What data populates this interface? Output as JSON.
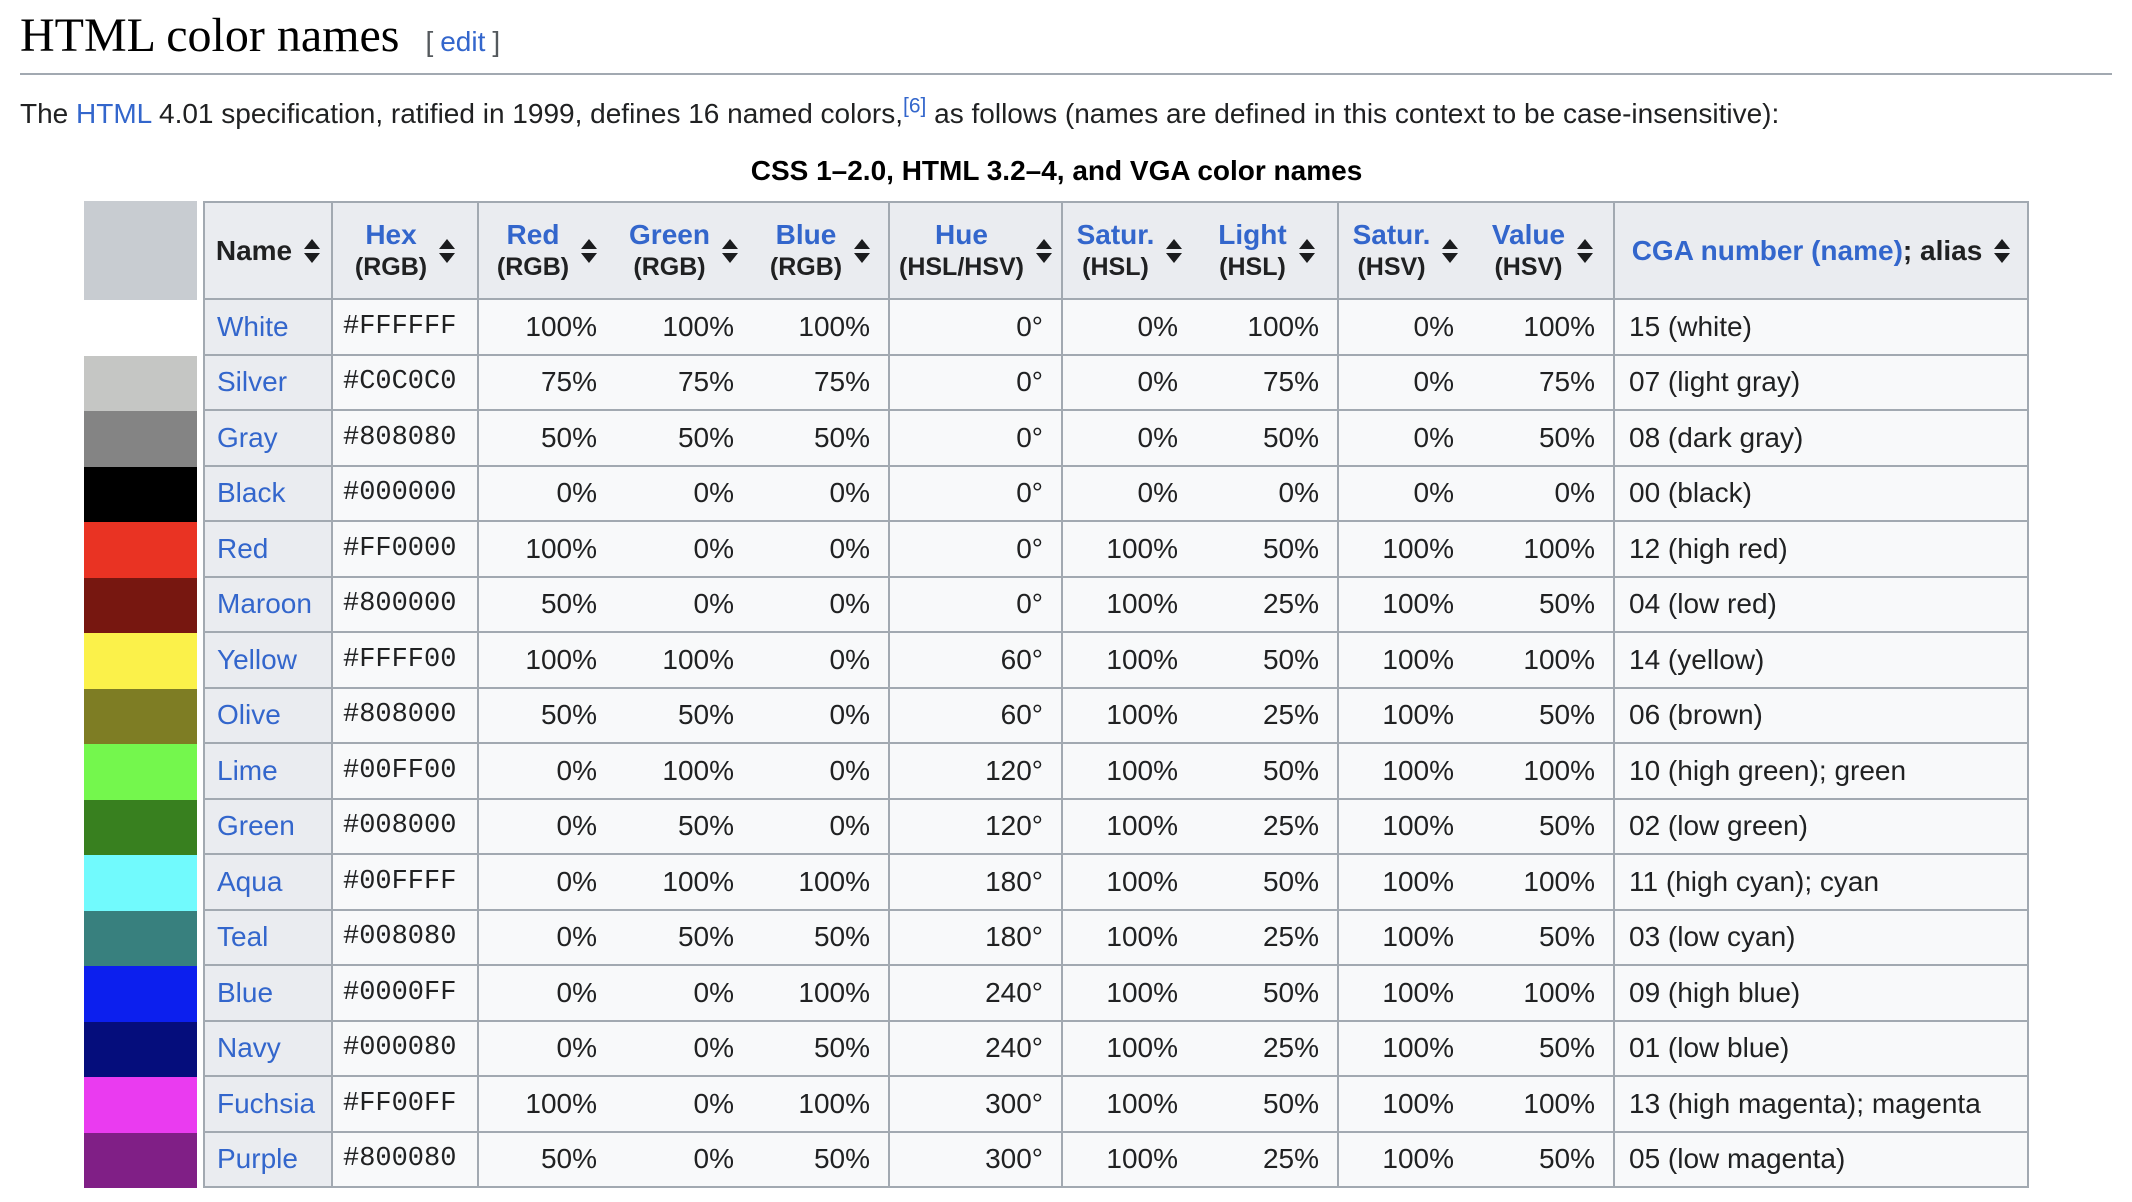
{
  "colors": {
    "link": "#3366CC",
    "text": "#202122",
    "border": "#A2A9B1",
    "header_bg": "#EAECF0",
    "corner_bg": "#C8CCD1",
    "cell_bg": "#F8F9FA",
    "bracket": "#54595D"
  },
  "page": {
    "title": "HTML color names",
    "edit": {
      "open": "[",
      "label": "edit",
      "close": "]"
    },
    "intro": {
      "before": "The ",
      "link": "HTML",
      "middle": " 4.01 specification, ratified in 1999, defines 16 named colors,",
      "ref": "[6]",
      "tail": " as follows (names are defined in this context to be case-insensitive):"
    }
  },
  "table": {
    "caption": "CSS 1–2.0, HTML 3.2–4, and VGA color names",
    "columns": [
      {
        "id": "name",
        "label": "Name",
        "sub": "",
        "link": false,
        "suffix": ""
      },
      {
        "id": "hex",
        "label": "Hex",
        "sub": "(RGB)",
        "link": true,
        "suffix": ""
      },
      {
        "id": "red",
        "label": "Red",
        "sub": "(RGB)",
        "link": true,
        "suffix": ""
      },
      {
        "id": "green",
        "label": "Green",
        "sub": "(RGB)",
        "link": true,
        "suffix": ""
      },
      {
        "id": "blue",
        "label": "Blue",
        "sub": "(RGB)",
        "link": true,
        "suffix": ""
      },
      {
        "id": "hue",
        "label": "Hue",
        "sub": "(HSL/HSV)",
        "link": true,
        "suffix": ""
      },
      {
        "id": "sat_hsl",
        "label": "Satur.",
        "sub": "(HSL)",
        "link": true,
        "suffix": ""
      },
      {
        "id": "light",
        "label": "Light",
        "sub": "(HSL)",
        "link": true,
        "suffix": ""
      },
      {
        "id": "sat_hsv",
        "label": "Satur.",
        "sub": "(HSV)",
        "link": true,
        "suffix": ""
      },
      {
        "id": "value",
        "label": "Value",
        "sub": "(HSV)",
        "link": true,
        "suffix": ""
      },
      {
        "id": "cga",
        "label": "CGA number (name)",
        "sub": "",
        "link": true,
        "suffix": "; alias"
      }
    ],
    "rows": [
      {
        "name": "White",
        "swatch": "#FFFFFF",
        "hex": "#FFFFFF",
        "red": "100%",
        "green": "100%",
        "blue": "100%",
        "hue": "0°",
        "sat_hsl": "0%",
        "light": "100%",
        "sat_hsv": "0%",
        "value": "100%",
        "cga": "15 (white)"
      },
      {
        "name": "Silver",
        "swatch": "#C5C6C4",
        "hex": "#C0C0C0",
        "red": "75%",
        "green": "75%",
        "blue": "75%",
        "hue": "0°",
        "sat_hsl": "0%",
        "light": "75%",
        "sat_hsv": "0%",
        "value": "75%",
        "cga": "07 (light gray)"
      },
      {
        "name": "Gray",
        "swatch": "#848484",
        "hex": "#808080",
        "red": "50%",
        "green": "50%",
        "blue": "50%",
        "hue": "0°",
        "sat_hsl": "0%",
        "light": "50%",
        "sat_hsv": "0%",
        "value": "50%",
        "cga": "08 (dark gray)"
      },
      {
        "name": "Black",
        "swatch": "#000000",
        "hex": "#000000",
        "red": "0%",
        "green": "0%",
        "blue": "0%",
        "hue": "0°",
        "sat_hsl": "0%",
        "light": "0%",
        "sat_hsv": "0%",
        "value": "0%",
        "cga": "00 (black)"
      },
      {
        "name": "Red",
        "swatch": "#E93323",
        "hex": "#FF0000",
        "red": "100%",
        "green": "0%",
        "blue": "0%",
        "hue": "0°",
        "sat_hsl": "100%",
        "light": "50%",
        "sat_hsv": "100%",
        "value": "100%",
        "cga": "12 (high red)"
      },
      {
        "name": "Maroon",
        "swatch": "#771710",
        "hex": "#800000",
        "red": "50%",
        "green": "0%",
        "blue": "0%",
        "hue": "0°",
        "sat_hsl": "100%",
        "light": "25%",
        "sat_hsv": "100%",
        "value": "50%",
        "cga": "04 (low red)"
      },
      {
        "name": "Yellow",
        "swatch": "#FBF14A",
        "hex": "#FFFF00",
        "red": "100%",
        "green": "100%",
        "blue": "0%",
        "hue": "60°",
        "sat_hsl": "100%",
        "light": "50%",
        "sat_hsv": "100%",
        "value": "100%",
        "cga": "14 (yellow)"
      },
      {
        "name": "Olive",
        "swatch": "#7E7D24",
        "hex": "#808000",
        "red": "50%",
        "green": "50%",
        "blue": "0%",
        "hue": "60°",
        "sat_hsl": "100%",
        "light": "25%",
        "sat_hsv": "100%",
        "value": "50%",
        "cga": "06 (brown)"
      },
      {
        "name": "Lime",
        "swatch": "#74F74D",
        "hex": "#00FF00",
        "red": "0%",
        "green": "100%",
        "blue": "0%",
        "hue": "120°",
        "sat_hsl": "100%",
        "light": "50%",
        "sat_hsv": "100%",
        "value": "100%",
        "cga": "10 (high green); green"
      },
      {
        "name": "Green",
        "swatch": "#38801F",
        "hex": "#008000",
        "red": "0%",
        "green": "50%",
        "blue": "0%",
        "hue": "120°",
        "sat_hsl": "100%",
        "light": "25%",
        "sat_hsv": "100%",
        "value": "50%",
        "cga": "02 (low green)"
      },
      {
        "name": "Aqua",
        "swatch": "#71FAFD",
        "hex": "#00FFFF",
        "red": "0%",
        "green": "100%",
        "blue": "100%",
        "hue": "180°",
        "sat_hsl": "100%",
        "light": "50%",
        "sat_hsv": "100%",
        "value": "100%",
        "cga": "11 (high cyan); cyan"
      },
      {
        "name": "Teal",
        "swatch": "#38807E",
        "hex": "#008080",
        "red": "0%",
        "green": "50%",
        "blue": "50%",
        "hue": "180°",
        "sat_hsl": "100%",
        "light": "25%",
        "sat_hsv": "100%",
        "value": "50%",
        "cga": "03 (low cyan)"
      },
      {
        "name": "Blue",
        "swatch": "#0C1FEE",
        "hex": "#0000FF",
        "red": "0%",
        "green": "0%",
        "blue": "100%",
        "hue": "240°",
        "sat_hsl": "100%",
        "light": "50%",
        "sat_hsv": "100%",
        "value": "100%",
        "cga": "09 (high blue)"
      },
      {
        "name": "Navy",
        "swatch": "#050D7C",
        "hex": "#000080",
        "red": "0%",
        "green": "0%",
        "blue": "50%",
        "hue": "240°",
        "sat_hsl": "100%",
        "light": "25%",
        "sat_hsv": "100%",
        "value": "50%",
        "cga": "01 (low blue)"
      },
      {
        "name": "Fuchsia",
        "swatch": "#EA3BF0",
        "hex": "#FF00FF",
        "red": "100%",
        "green": "0%",
        "blue": "100%",
        "hue": "300°",
        "sat_hsl": "100%",
        "light": "50%",
        "sat_hsv": "100%",
        "value": "100%",
        "cga": "13 (high magenta); magenta"
      },
      {
        "name": "Purple",
        "swatch": "#801F86",
        "hex": "#800080",
        "red": "50%",
        "green": "0%",
        "blue": "50%",
        "hue": "300°",
        "sat_hsl": "100%",
        "light": "25%",
        "sat_hsv": "100%",
        "value": "50%",
        "cga": "05 (low magenta)"
      }
    ]
  }
}
